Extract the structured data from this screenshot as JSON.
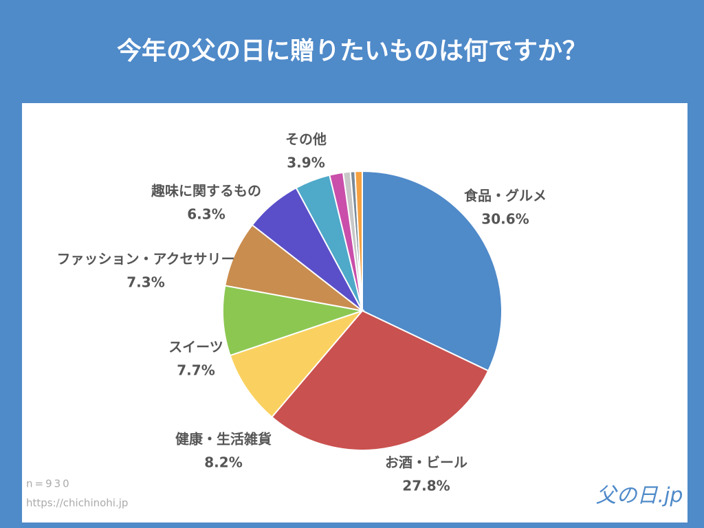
{
  "chart_data": {
    "type": "pie",
    "title": "今年の父の日に贈りたいものは何ですか？",
    "categories": [
      "食品・グルメ",
      "お酒・ビール",
      "健康・生活雑貨",
      "スイーツ",
      "ファッション・アクセサリー",
      "趣味に関するもの",
      "その他",
      null,
      null,
      null,
      null
    ],
    "values": [
      30.6,
      27.8,
      8.2,
      7.7,
      7.3,
      6.3,
      3.9,
      1.5,
      0.8,
      0.5,
      0.8
    ],
    "value_labels": [
      "30.6%",
      "27.8%",
      "8.2%",
      "7.7%",
      "7.3%",
      "6.3%",
      "3.9%",
      null,
      null,
      null,
      null
    ],
    "colors": [
      "#4f8ac9",
      "#c9514f",
      "#fad160",
      "#8cc752",
      "#c98d4f",
      "#5a4fc9",
      "#4fa9c9",
      "#c94faa",
      "#c8c8c8",
      "#7a8a99",
      "#f5a142"
    ],
    "footnote": "n=930",
    "source": "https://chichinohi.jp",
    "logo": "父の日.jp"
  }
}
